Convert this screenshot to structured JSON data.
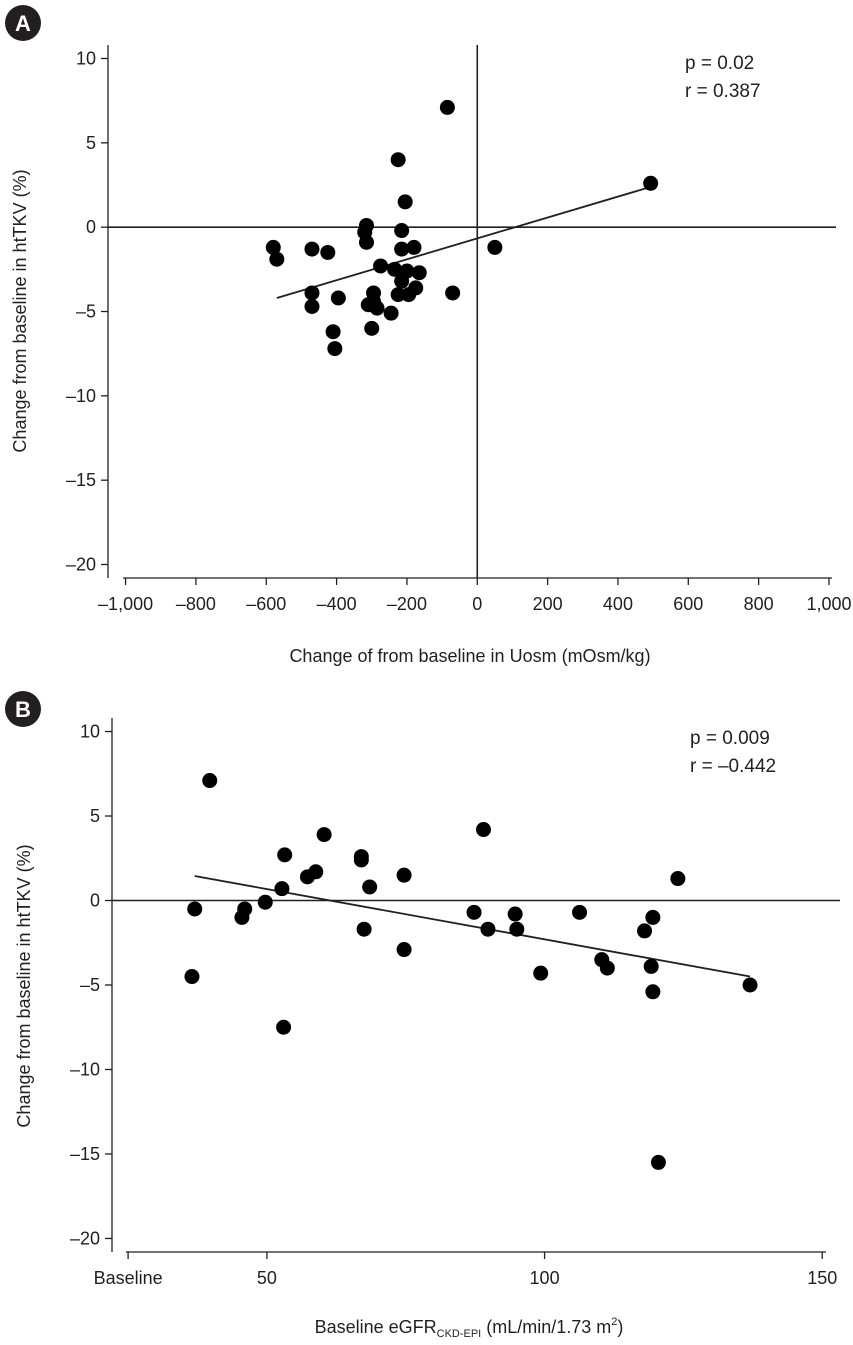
{
  "chart_data": [
    {
      "panel": "A",
      "type": "scatter",
      "xlabel": "Change of from baseline in Uosm (mOsm/kg)",
      "ylabel": "Change from baseline in htTKV (%)",
      "xlim": [
        -1050,
        1020
      ],
      "ylim": [
        -20.8,
        10.8
      ],
      "xticks": [
        -1000,
        -800,
        -600,
        -400,
        -200,
        0,
        200,
        400,
        600,
        800,
        1000
      ],
      "xtick_labels": [
        "–1,000",
        "–800",
        "–600",
        "–400",
        "–200",
        "0",
        "200",
        "400",
        "600",
        "800",
        "1,000"
      ],
      "yticks": [
        10,
        5,
        0,
        -5,
        -10,
        -15,
        -20
      ],
      "ytick_labels": [
        "10",
        "5",
        "0",
        "–5",
        "–10",
        "–15",
        "–20"
      ],
      "reference_lines": {
        "y": 0,
        "x": 0
      },
      "annotations": [
        "p = 0.02",
        "r = 0.387"
      ],
      "trendline": {
        "x": [
          -570,
          495
        ],
        "y": [
          -4.2,
          2.4
        ]
      },
      "points": [
        {
          "x": 493,
          "y": 2.6
        },
        {
          "x": -85,
          "y": 7.1
        },
        {
          "x": -225,
          "y": 4.0
        },
        {
          "x": -205,
          "y": 1.5
        },
        {
          "x": -315,
          "y": 0.1
        },
        {
          "x": -215,
          "y": -0.2
        },
        {
          "x": -320,
          "y": -0.3
        },
        {
          "x": -315,
          "y": -0.9
        },
        {
          "x": -580,
          "y": -1.2
        },
        {
          "x": -570,
          "y": -1.9
        },
        {
          "x": -470,
          "y": -1.3
        },
        {
          "x": -425,
          "y": -1.5
        },
        {
          "x": -215,
          "y": -1.3
        },
        {
          "x": -180,
          "y": -1.2
        },
        {
          "x": 50,
          "y": -1.2
        },
        {
          "x": -275,
          "y": -2.3
        },
        {
          "x": -235,
          "y": -2.5
        },
        {
          "x": -200,
          "y": -2.6
        },
        {
          "x": -165,
          "y": -2.7
        },
        {
          "x": -215,
          "y": -3.2
        },
        {
          "x": -175,
          "y": -3.6
        },
        {
          "x": -470,
          "y": -3.9
        },
        {
          "x": -395,
          "y": -4.2
        },
        {
          "x": -295,
          "y": -3.9
        },
        {
          "x": -225,
          "y": -4.0
        },
        {
          "x": -195,
          "y": -4.0
        },
        {
          "x": -70,
          "y": -3.9
        },
        {
          "x": -470,
          "y": -4.7
        },
        {
          "x": -310,
          "y": -4.6
        },
        {
          "x": -295,
          "y": -4.4
        },
        {
          "x": -285,
          "y": -4.8
        },
        {
          "x": -245,
          "y": -5.1
        },
        {
          "x": -410,
          "y": -6.2
        },
        {
          "x": -300,
          "y": -6.0
        },
        {
          "x": -405,
          "y": -7.2
        }
      ]
    },
    {
      "panel": "B",
      "type": "scatter",
      "xlabel_main": "Baseline eGFR",
      "xlabel_sub": "CKD-EPI",
      "xlabel_unit": " (mL/min/1.73 m",
      "xlabel_sup": "2",
      "xlabel_end": ")",
      "ylabel": "Change from baseline in htTKV (%)",
      "xlim": [
        22.1,
        153.2
      ],
      "ylim": [
        -20.8,
        10.8
      ],
      "xticks": [
        25,
        50,
        100,
        150
      ],
      "xtick_labels": [
        "Baseline",
        "50",
        "100",
        "150"
      ],
      "yticks": [
        10,
        5,
        0,
        -5,
        -10,
        -15,
        -20
      ],
      "ytick_labels": [
        "10",
        "5",
        "0",
        "–5",
        "–10",
        "–15",
        "–20"
      ],
      "reference_lines": {
        "y": 0
      },
      "annotations": [
        "p = 0.009",
        "r = –0.442"
      ],
      "trendline": {
        "x": [
          37,
          137
        ],
        "y": [
          1.45,
          -4.5
        ]
      },
      "points": [
        {
          "x": 39.7,
          "y": 7.1
        },
        {
          "x": 36.5,
          "y": -4.5
        },
        {
          "x": 37.0,
          "y": -0.5
        },
        {
          "x": 46.0,
          "y": -0.5
        },
        {
          "x": 45.5,
          "y": -1.0
        },
        {
          "x": 49.7,
          "y": -0.1
        },
        {
          "x": 52.7,
          "y": 0.7
        },
        {
          "x": 53.2,
          "y": 2.7
        },
        {
          "x": 53.0,
          "y": -7.5
        },
        {
          "x": 57.3,
          "y": 1.4
        },
        {
          "x": 58.8,
          "y": 1.7
        },
        {
          "x": 60.3,
          "y": 3.9
        },
        {
          "x": 67.0,
          "y": 2.6
        },
        {
          "x": 67.0,
          "y": 2.4
        },
        {
          "x": 67.5,
          "y": -1.7
        },
        {
          "x": 68.5,
          "y": 0.8
        },
        {
          "x": 74.7,
          "y": 1.5
        },
        {
          "x": 74.7,
          "y": -2.9
        },
        {
          "x": 87.3,
          "y": -0.7
        },
        {
          "x": 89.0,
          "y": 4.2
        },
        {
          "x": 89.8,
          "y": -1.7
        },
        {
          "x": 94.7,
          "y": -0.8
        },
        {
          "x": 95.0,
          "y": -1.7
        },
        {
          "x": 99.3,
          "y": -4.3
        },
        {
          "x": 106.3,
          "y": -0.7
        },
        {
          "x": 110.3,
          "y": -3.5
        },
        {
          "x": 111.3,
          "y": -4.0
        },
        {
          "x": 118.0,
          "y": -1.8
        },
        {
          "x": 119.2,
          "y": -3.9
        },
        {
          "x": 119.5,
          "y": -1.0
        },
        {
          "x": 119.5,
          "y": -5.4
        },
        {
          "x": 120.5,
          "y": -15.5
        },
        {
          "x": 124.0,
          "y": 1.3
        },
        {
          "x": 137.0,
          "y": -5.0
        }
      ]
    }
  ]
}
